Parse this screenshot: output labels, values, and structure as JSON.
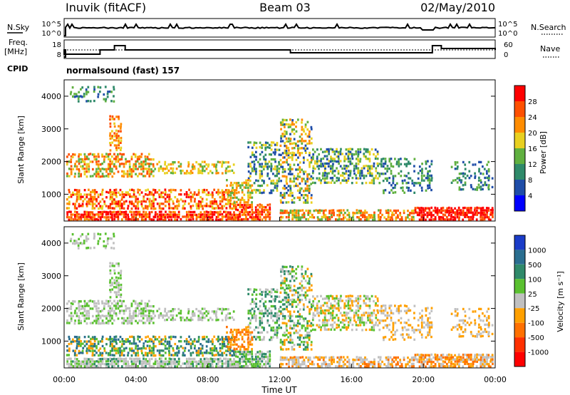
{
  "header": {
    "station": "Inuvik (fitACF)",
    "beam": "Beam 03",
    "date": "02/May/2010"
  },
  "status_panels": {
    "nsky_label": "N.Sky",
    "nsky_ticks": [
      "10^5",
      "10^0"
    ],
    "nsearch_label": "N.Search",
    "freq_label_line1": "Freq.",
    "freq_label_line2": "[MHz]",
    "freq_ticks": [
      "18",
      "8"
    ],
    "nave_label": "Nave",
    "nave_ticks": [
      "60",
      "0"
    ],
    "cpid_label": "CPID",
    "cpid_text": "normalsound (fast) 157"
  },
  "chart_data": [
    {
      "type": "heatmap",
      "name": "power",
      "ylabel": "Slant Range [km]",
      "xlabel": "",
      "xlim": [
        0,
        24
      ],
      "ylim": [
        180,
        4500
      ],
      "yticks": [
        1000,
        2000,
        3000,
        4000
      ],
      "colorbar": {
        "label": "Power [dB]",
        "ticks": [
          4,
          8,
          12,
          16,
          20,
          24,
          28
        ],
        "colors": [
          "#0000ff",
          "#1f4da8",
          "#2f8a6a",
          "#60b040",
          "#e8d020",
          "#ff8c00",
          "#ff5000",
          "#ff0000"
        ]
      }
    },
    {
      "type": "heatmap",
      "name": "velocity",
      "ylabel": "Slant Range [km]",
      "xlabel": "Time UT",
      "xlim": [
        0,
        24
      ],
      "ylim": [
        180,
        4500
      ],
      "yticks": [
        1000,
        2000,
        3000,
        4000
      ],
      "colorbar": {
        "label": "Velocity [m s⁻¹]",
        "ticks": [
          "1000",
          "500",
          "100",
          "25",
          "-25",
          "-100",
          "-500",
          "-1000"
        ],
        "colors": [
          "#1a3cc8",
          "#2a6e90",
          "#2f8a6a",
          "#5ac030",
          "#c0c0c0",
          "#ffa000",
          "#ff7000",
          "#ff3000",
          "#ff0000"
        ]
      }
    }
  ],
  "time_ticks": [
    "00:00",
    "04:00",
    "08:00",
    "12:00",
    "16:00",
    "20:00",
    "00:00"
  ],
  "colors": {
    "power": [
      "#0000ff",
      "#1f4da8",
      "#2f8a6a",
      "#60b040",
      "#e8d020",
      "#ff8c00",
      "#ff5000",
      "#ff0000"
    ],
    "velocity_low": "#1a3cc8",
    "velocity_ground": "#c0c0c0",
    "velocity_high": "#ff3000"
  }
}
